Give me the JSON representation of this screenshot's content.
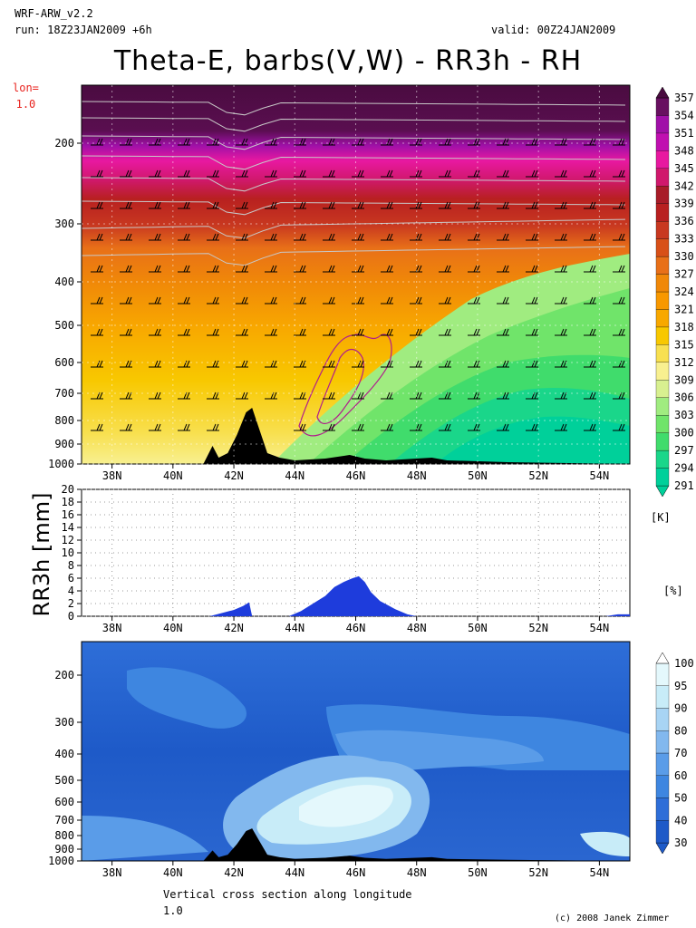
{
  "header": {
    "model": "WRF-ARW_v2.2",
    "run": "run: 18Z23JAN2009 +6h",
    "valid": "valid: 00Z24JAN2009"
  },
  "title": "Theta-E, barbs(V,W) - RR3h - RH",
  "lon_label": {
    "line1": "lon=",
    "line2": "1.0"
  },
  "footer": {
    "line1": "Vertical cross section along longitude",
    "line2": "1.0",
    "credit": "(c) 2008 Janek Zimmer"
  },
  "units": {
    "theta_e": "[K]",
    "rh": "[%]"
  },
  "colors": {
    "terrain": "#000000",
    "precip": "#1e3cdc",
    "rh_contour": "#b01e8c"
  },
  "chart_data": [
    {
      "type": "heatmap",
      "title": "Theta-E, barbs(V,W)",
      "x_ticks": [
        "38N",
        "40N",
        "42N",
        "44N",
        "46N",
        "48N",
        "50N",
        "52N",
        "54N"
      ],
      "x_range": [
        37,
        55
      ],
      "y_ticks": [
        "200",
        "300",
        "400",
        "500",
        "600",
        "700",
        "800",
        "900",
        "1000"
      ],
      "y_values": [
        200,
        300,
        400,
        500,
        600,
        700,
        800,
        900,
        1000
      ],
      "colorbar": {
        "unit": "[K]",
        "levels": [
          "291",
          "294",
          "297",
          "300",
          "303",
          "306",
          "309",
          "312",
          "315",
          "318",
          "321",
          "324",
          "327",
          "330",
          "333",
          "336",
          "339",
          "342",
          "345",
          "348",
          "351",
          "354",
          "357"
        ],
        "colors": [
          "#00d09a",
          "#1ad68a",
          "#40dc6c",
          "#70e46a",
          "#a0ec80",
          "#d8f090",
          "#f8f090",
          "#f8e050",
          "#f8c800",
          "#f8a800",
          "#f89800",
          "#f08808",
          "#e87018",
          "#d85018",
          "#c83820",
          "#b82020",
          "#a81c28",
          "#d0186c",
          "#e818a0",
          "#c010b0",
          "#a010a8",
          "#681060",
          "#4a0c40"
        ]
      }
    },
    {
      "type": "area",
      "ylabel": "RR3h [mm]",
      "x_ticks": [
        "38N",
        "40N",
        "42N",
        "44N",
        "46N",
        "48N",
        "50N",
        "52N",
        "54N"
      ],
      "x_range": [
        37,
        55
      ],
      "y_ticks": [
        "0",
        "2",
        "4",
        "6",
        "8",
        "10",
        "12",
        "14",
        "16",
        "18",
        "20"
      ],
      "ylim": [
        0,
        20
      ],
      "grid": true,
      "series": [
        {
          "x": [
            41.2,
            41.6,
            42.0,
            42.3,
            42.5,
            42.6,
            43.8,
            44.2,
            44.6,
            45.0,
            45.3,
            45.6,
            45.9,
            46.1,
            46.3,
            46.5,
            46.8,
            47.0,
            47.3,
            47.7,
            48.0,
            54.2,
            54.6,
            55.0
          ],
          "y": [
            0,
            0.5,
            1.0,
            1.6,
            2.2,
            0,
            0,
            0.8,
            2.0,
            3.2,
            4.6,
            5.4,
            6.0,
            6.3,
            5.4,
            3.8,
            2.4,
            1.9,
            1.1,
            0.3,
            0,
            0,
            0.3,
            0.3
          ]
        }
      ]
    },
    {
      "type": "heatmap",
      "x_ticks": [
        "38N",
        "40N",
        "42N",
        "44N",
        "46N",
        "48N",
        "50N",
        "52N",
        "54N"
      ],
      "x_range": [
        37,
        55
      ],
      "y_ticks": [
        "200",
        "300",
        "400",
        "500",
        "600",
        "700",
        "800",
        "900",
        "1000"
      ],
      "y_values": [
        200,
        300,
        400,
        500,
        600,
        700,
        800,
        900,
        1000
      ],
      "colorbar": {
        "unit": "[%]",
        "levels": [
          "30",
          "40",
          "50",
          "60",
          "70",
          "80",
          "90",
          "95",
          "100"
        ],
        "colors": [
          "#1e5ac8",
          "#2e6ed8",
          "#3e86e0",
          "#5a9ce8",
          "#82b8ee",
          "#a8d4f4",
          "#c8ecf8",
          "#e4f8fc",
          "#ffffff"
        ]
      }
    }
  ]
}
